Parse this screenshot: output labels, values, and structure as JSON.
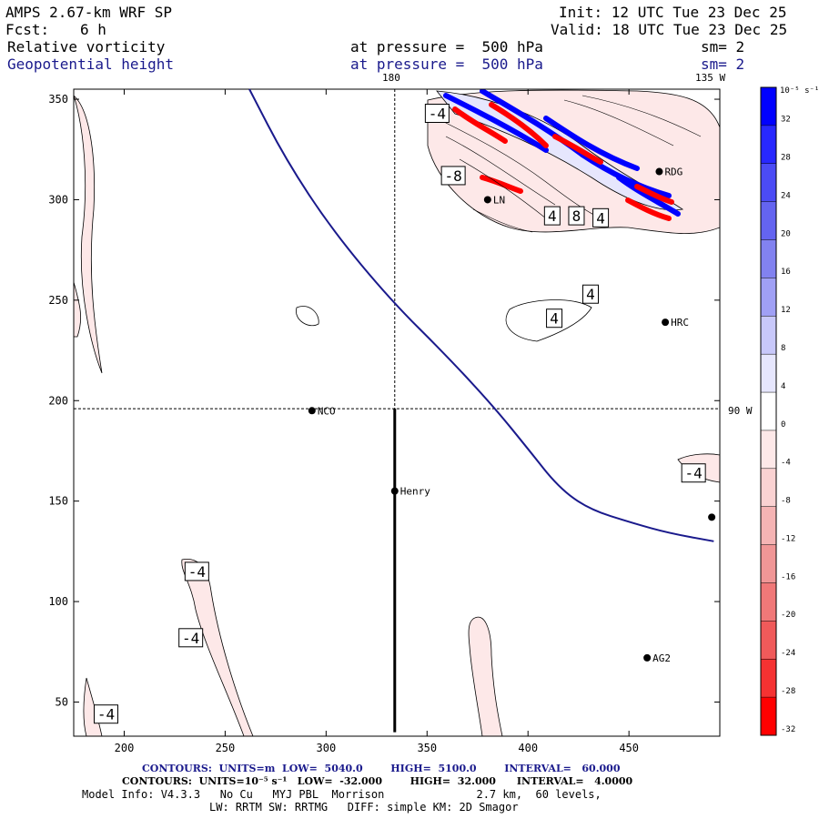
{
  "header": {
    "model": "AMPS 2.67-km WRF SP",
    "fcst_label": "Fcst:",
    "fcst_value": "6 h",
    "init": "Init: 12 UTC Tue 23 Dec 25",
    "valid": "Valid: 18 UTC Tue 23 Dec 25",
    "field1": "Relative vorticity",
    "field2": "Geopotential height",
    "pressure1": "at pressure =  500 hPa",
    "pressure2": "at pressure =  500 hPa",
    "sm1": "sm= 2",
    "sm2": "sm= 2"
  },
  "map_labels": {
    "lon_180": "180",
    "lon_135w": "135 W",
    "lat_90w": "90 W"
  },
  "footer": {
    "line1": "CONTOURS:  UNITS=m  LOW=  5040.0        HIGH=  5100.0        INTERVAL=   60.000",
    "line2": "CONTOURS:  UNITS=10⁻⁵ s⁻¹   LOW=  -32.000        HIGH=  32.000      INTERVAL=   4.0000",
    "line3": "Model Info: V4.3.3   No Cu   MYJ PBL  Morrison              2.7 km,  60 levels,",
    "line4": "LW: RRTM SW: RRTMG   DIFF: simple KM: 2D Smagor"
  },
  "colorbar": {
    "unit_label": "10⁻⁵ s⁻¹",
    "ticks": [
      "32",
      "28",
      "24",
      "20",
      "16",
      "12",
      "8",
      "4",
      "0",
      "-4",
      "-8",
      "-12",
      "-16",
      "-20",
      "-24",
      "-28",
      "-32"
    ],
    "colors": [
      "#0000ff",
      "#2828ff",
      "#4b4bf5",
      "#6464f0",
      "#8282f0",
      "#a0a0f5",
      "#c8c8fa",
      "#e6e6fd",
      "#ffffff",
      "#fde8e8",
      "#fad2d2",
      "#f5b4b4",
      "#f09696",
      "#f07878",
      "#f05a5a",
      "#f53232",
      "#ff0000"
    ]
  },
  "chart_data": {
    "type": "contour",
    "title": "Relative vorticity & Geopotential height at 500 hPa",
    "xlabel": "",
    "ylabel": "",
    "xlim": [
      175,
      495
    ],
    "ylim": [
      33,
      355
    ],
    "x_ticks": [
      200,
      250,
      300,
      350,
      400,
      450
    ],
    "y_ticks": [
      50,
      100,
      150,
      200,
      250,
      300,
      350
    ],
    "height_contour": {
      "label": "Geopotential height",
      "color": "#1a1a8c",
      "points": [
        [
          262,
          355
        ],
        [
          280,
          320
        ],
        [
          303,
          285
        ],
        [
          332,
          250
        ],
        [
          360,
          222
        ],
        [
          383,
          197
        ],
        [
          400,
          176
        ],
        [
          415,
          157
        ],
        [
          430,
          146
        ],
        [
          452,
          139
        ],
        [
          470,
          134
        ],
        [
          492,
          130
        ]
      ]
    },
    "reference_lines": {
      "x_dashed": 334,
      "y_dashed": 196,
      "x_solid_from_y": [
        35,
        196
      ]
    },
    "stations": [
      {
        "name": "NCO",
        "x": 293,
        "y": 195
      },
      {
        "name": "Henry",
        "x": 334,
        "y": 155
      },
      {
        "name": "HRC",
        "x": 468,
        "y": 239
      },
      {
        "name": "RDG",
        "x": 465,
        "y": 314
      },
      {
        "name": "LN",
        "x": 380,
        "y": 300
      },
      {
        "name": "AG2",
        "x": 459,
        "y": 72
      }
    ],
    "unlabeled_stations": [
      {
        "x": 491,
        "y": 142
      }
    ],
    "contour_labels": [
      {
        "text": "-4",
        "x": 355,
        "y": 343
      },
      {
        "text": "-8",
        "x": 363,
        "y": 312
      },
      {
        "text": "4",
        "x": 412,
        "y": 292
      },
      {
        "text": "8",
        "x": 424,
        "y": 292
      },
      {
        "text": "4",
        "x": 436,
        "y": 291
      },
      {
        "text": "4",
        "x": 431,
        "y": 253
      },
      {
        "text": "4",
        "x": 413,
        "y": 241
      },
      {
        "text": "-4",
        "x": 482,
        "y": 164
      },
      {
        "text": "-4",
        "x": 236,
        "y": 115
      },
      {
        "text": "-4",
        "x": 233,
        "y": 82
      },
      {
        "text": "-4",
        "x": 191,
        "y": 44
      }
    ]
  }
}
